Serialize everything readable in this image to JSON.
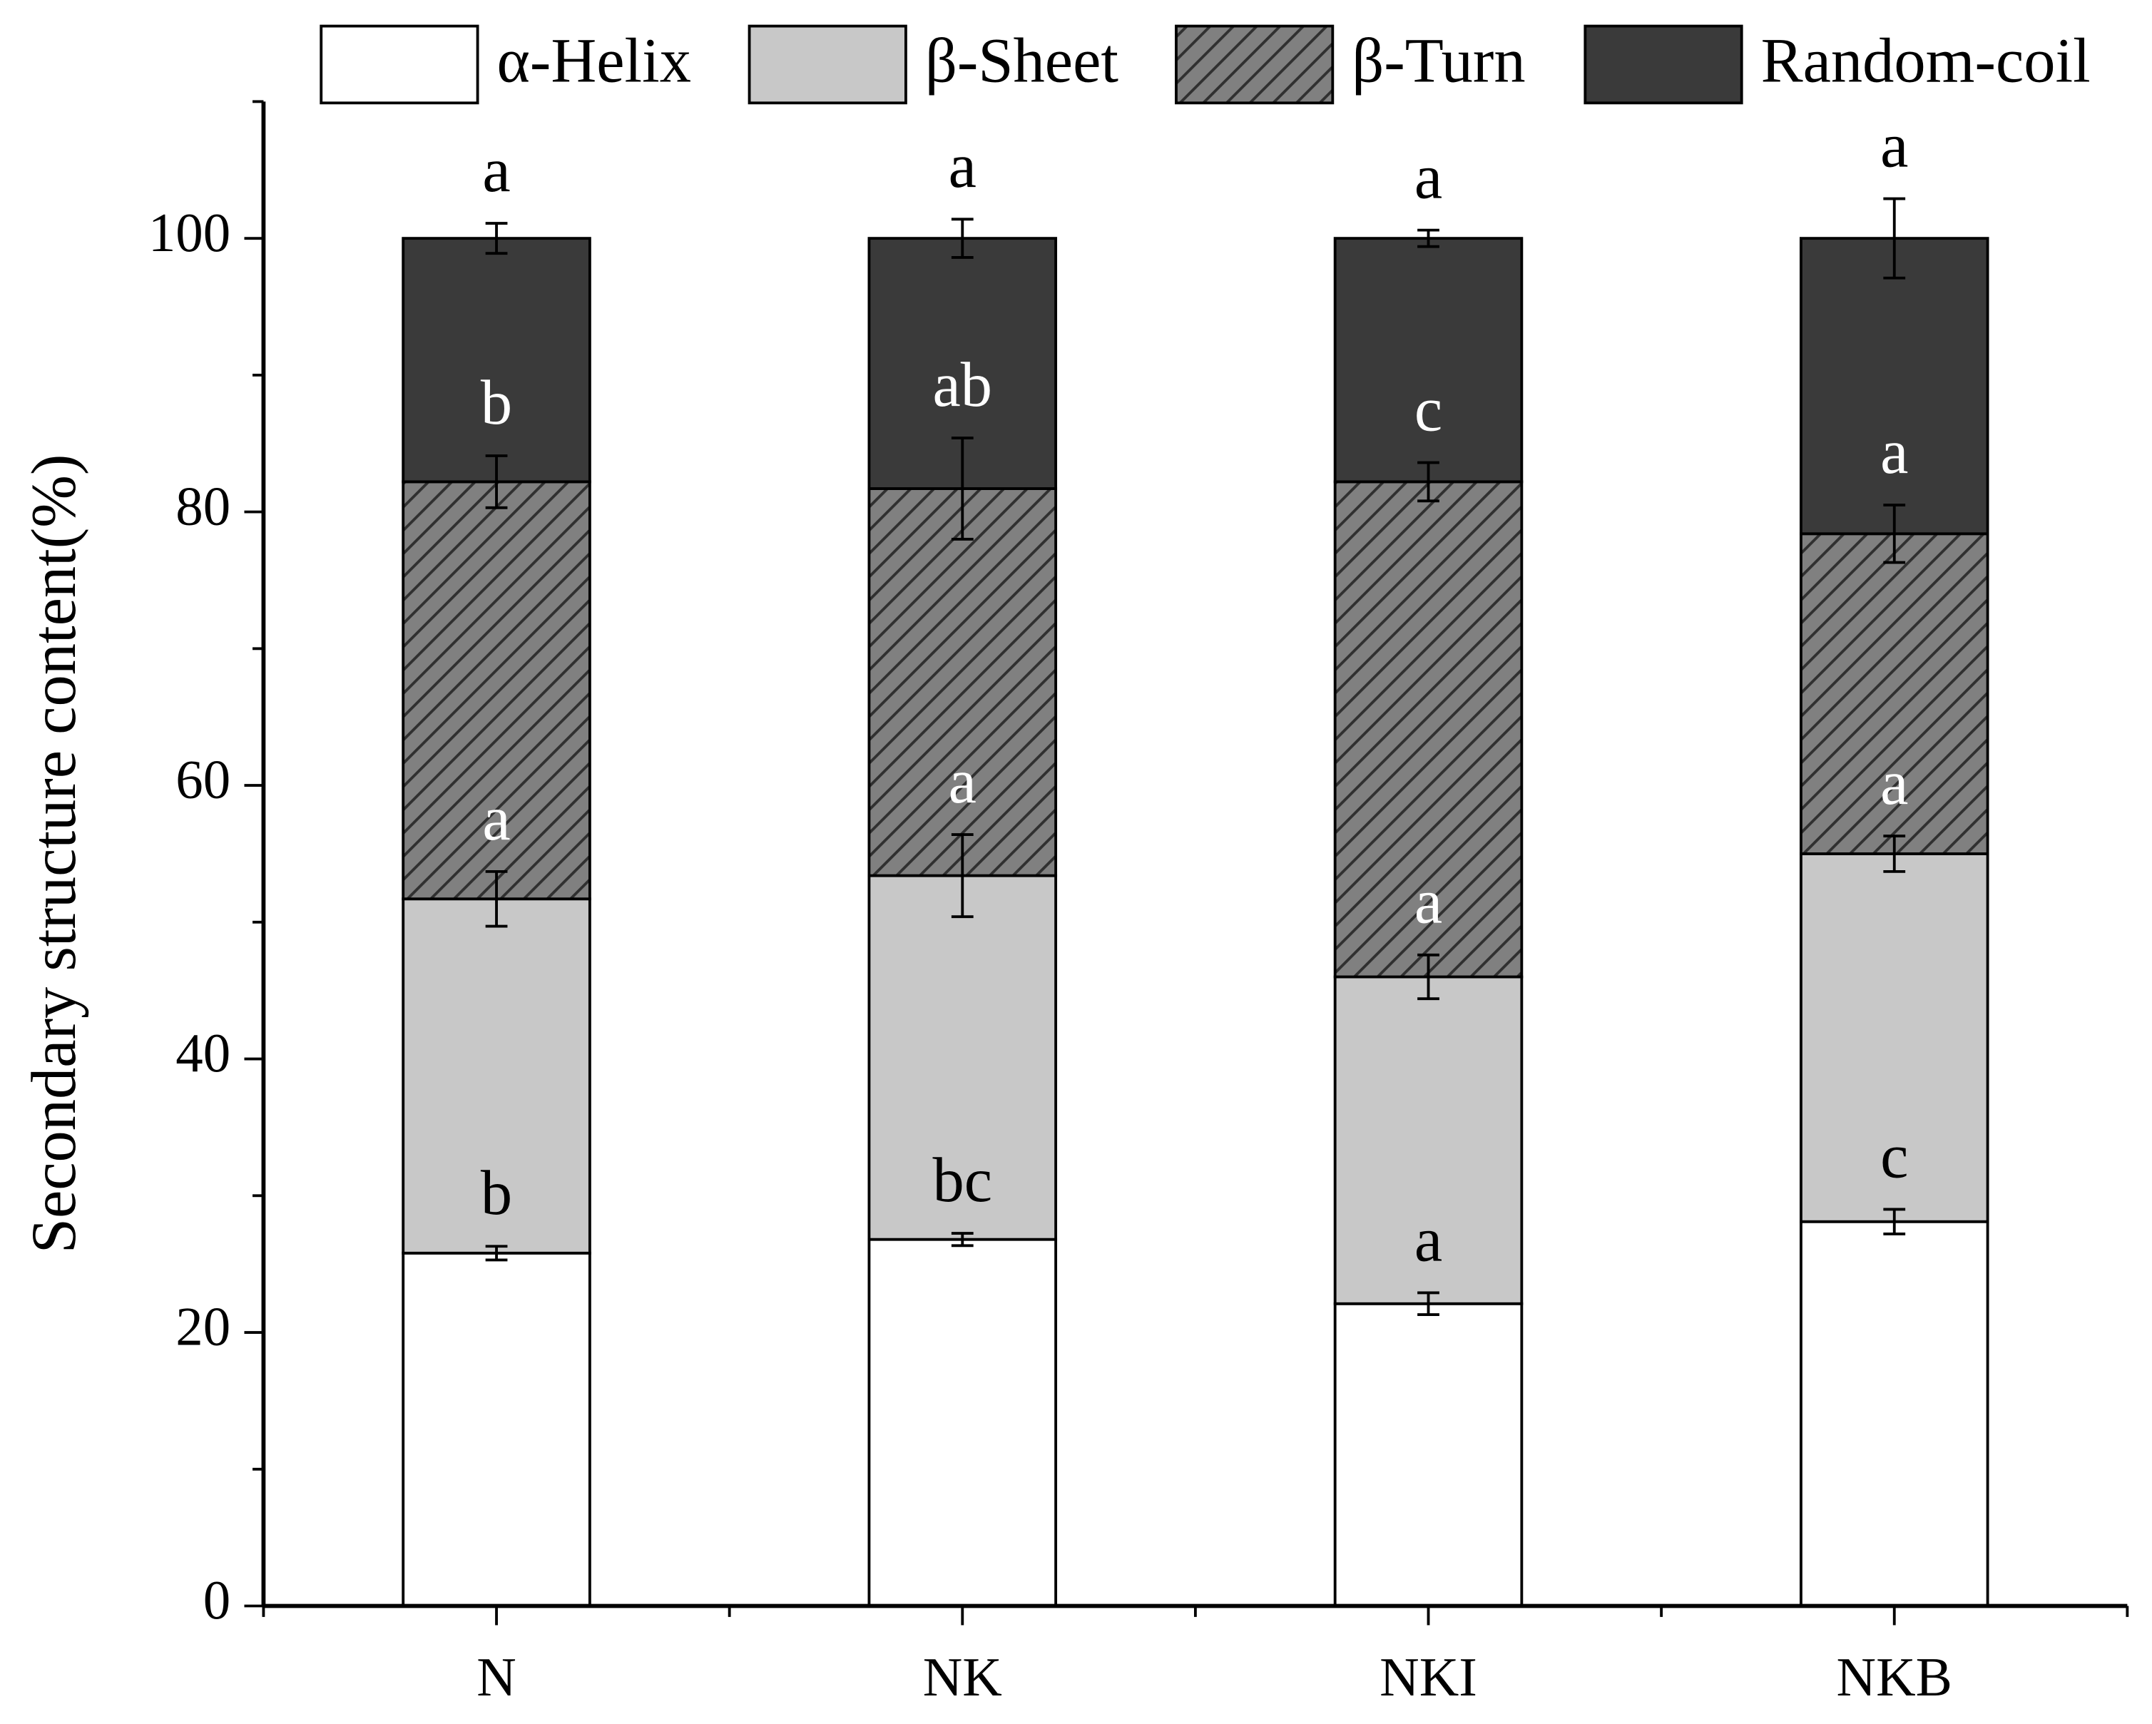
{
  "chart_data": {
    "type": "stacked-bar",
    "y_label": "Secondary structure content(%)",
    "categories": [
      "N",
      "NK",
      "NKI",
      "NKB"
    ],
    "series": [
      {
        "name": "α-Helix",
        "color": "#ffffff",
        "label_color": "#000000",
        "values": [
          25.8,
          26.8,
          22.1,
          28.1
        ],
        "errors": [
          0.5,
          0.45,
          0.8,
          0.9
        ],
        "labels": [
          "b",
          "bc",
          "a",
          "c"
        ]
      },
      {
        "name": "β-Sheet",
        "color": "#c8c8c8",
        "label_color": "#ffffff",
        "values": [
          25.9,
          26.6,
          23.9,
          26.9
        ],
        "errors": [
          2.0,
          3.0,
          1.6,
          1.3
        ],
        "labels": [
          "a",
          "a",
          "a",
          "a"
        ]
      },
      {
        "name": "β-Turn",
        "color": "#808080",
        "pattern": "hatch",
        "label_color": "#ffffff",
        "values": [
          30.5,
          28.3,
          36.2,
          23.4
        ],
        "errors": [
          1.9,
          3.7,
          1.4,
          2.1
        ],
        "labels": [
          "b",
          "ab",
          "c",
          "a"
        ]
      },
      {
        "name": "Random-coil",
        "color": "#3a3a3a",
        "label_color": "#000000",
        "values": [
          17.8,
          18.3,
          17.8,
          21.6
        ],
        "errors": [
          1.1,
          1.4,
          0.6,
          2.9
        ],
        "labels": [
          "a",
          "a",
          "a",
          "a"
        ]
      }
    ],
    "ylim": [
      0,
      110
    ],
    "yticks": [
      0,
      20,
      40,
      60,
      80,
      100
    ],
    "yminorticks": [
      10,
      30,
      50,
      70,
      90,
      110
    ]
  }
}
